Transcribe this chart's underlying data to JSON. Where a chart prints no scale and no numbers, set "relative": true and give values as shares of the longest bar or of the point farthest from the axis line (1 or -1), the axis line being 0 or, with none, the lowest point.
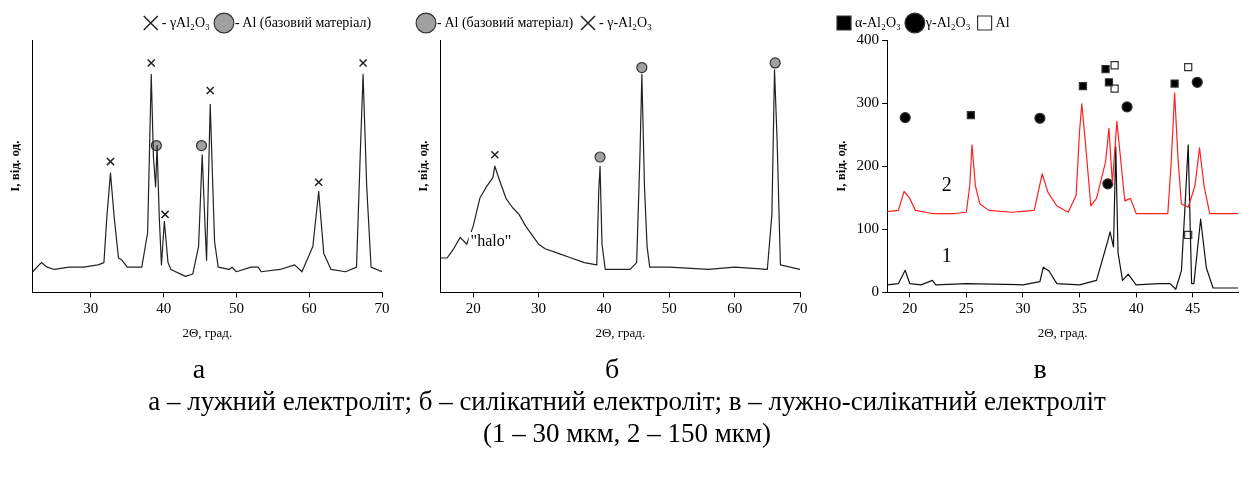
{
  "chart_data": [
    {
      "type": "line",
      "relative": true,
      "xlabel": "2Θ, град.",
      "ylabel": "I, від. од.",
      "xlim": [
        22,
        70
      ],
      "xticks": [
        30,
        40,
        50,
        60,
        70
      ],
      "tick_labels": "x",
      "legend": "top right",
      "annotations": [
        "а"
      ],
      "series": [
        {
          "color": "#222222",
          "marker": "none",
          "x": [
            22,
            23.2,
            24,
            25,
            27,
            29,
            31,
            31.8,
            32.2,
            32.7,
            33.2,
            33.8,
            34.3,
            35,
            37,
            37.8,
            38.3,
            38.6,
            38.9,
            39.1,
            39.4,
            39.7,
            40.1,
            40.6,
            41,
            43,
            44,
            44.8,
            45.3,
            45.7,
            45.9,
            46.4,
            47,
            47.5,
            49,
            49.4,
            50,
            52,
            53,
            53.4,
            56,
            58,
            59,
            60.5,
            61.3,
            62,
            63,
            65,
            66.5,
            67,
            67.4,
            67.9,
            68.5,
            70
          ],
          "values": [
            0.09,
            0.13,
            0.11,
            0.1,
            0.11,
            0.11,
            0.12,
            0.13,
            0.33,
            0.52,
            0.33,
            0.15,
            0.14,
            0.11,
            0.11,
            0.26,
            0.95,
            0.59,
            0.46,
            0.64,
            0.33,
            0.12,
            0.31,
            0.13,
            0.1,
            0.07,
            0.08,
            0.2,
            0.6,
            0.28,
            0.14,
            0.82,
            0.22,
            0.11,
            0.1,
            0.11,
            0.09,
            0.11,
            0.11,
            0.09,
            0.1,
            0.12,
            0.09,
            0.2,
            0.44,
            0.17,
            0.1,
            0.09,
            0.11,
            0.59,
            0.95,
            0.46,
            0.11,
            0.09
          ]
        },
        {
          "type": "scatter",
          "name": "- γAl₂O₃",
          "color": "#222222",
          "marker": "cross",
          "x": [
            32.7,
            38.3,
            40.2,
            46.4,
            61.3,
            67.4
          ],
          "values": [
            0.57,
            1.0,
            0.34,
            0.88,
            0.48,
            1.0
          ]
        },
        {
          "type": "scatter",
          "name": "- Al (базовий матеріал)",
          "color": "#a0a0a0",
          "marker": "circle",
          "x": [
            39,
            45.2
          ],
          "values": [
            0.64,
            0.64
          ]
        }
      ]
    },
    {
      "type": "line",
      "relative": true,
      "xlabel": "2Θ, град.",
      "ylabel": "I, від. од.",
      "xlim": [
        15,
        70
      ],
      "xticks": [
        20,
        30,
        40,
        50,
        60,
        70
      ],
      "tick_labels": "x",
      "legend": "top left",
      "annotations": [
        "б",
        "\"halo\""
      ],
      "series": [
        {
          "color": "#222222",
          "marker": "none",
          "x": [
            15,
            16,
            17,
            18,
            19,
            20,
            21,
            22,
            23,
            23.3,
            24,
            25,
            26,
            27,
            28,
            29,
            30,
            31,
            33,
            35,
            37,
            38.9,
            39.2,
            39.4,
            39.7,
            40.2,
            42,
            44,
            45,
            45.5,
            45.8,
            46.2,
            46.6,
            47,
            50,
            56,
            60,
            65,
            65.7,
            66.1,
            66.5,
            67,
            70
          ],
          "values": [
            0.15,
            0.15,
            0.19,
            0.24,
            0.21,
            0.29,
            0.41,
            0.46,
            0.5,
            0.55,
            0.49,
            0.41,
            0.37,
            0.34,
            0.29,
            0.25,
            0.21,
            0.19,
            0.17,
            0.15,
            0.13,
            0.12,
            0.44,
            0.55,
            0.21,
            0.1,
            0.1,
            0.1,
            0.13,
            0.59,
            0.95,
            0.46,
            0.2,
            0.11,
            0.11,
            0.1,
            0.11,
            0.1,
            0.34,
            0.97,
            0.66,
            0.12,
            0.1
          ]
        },
        {
          "type": "scatter",
          "name": "- Al (базовий матеріал)",
          "color": "#a0a0a0",
          "marker": "circle",
          "x": [
            39.4,
            45.8,
            66.2
          ],
          "values": [
            0.59,
            0.98,
            1.0
          ]
        },
        {
          "type": "scatter",
          "name": "- γ-Al₂O₃",
          "color": "#222222",
          "marker": "cross",
          "x": [
            23.3
          ],
          "values": [
            0.6
          ]
        }
      ]
    },
    {
      "type": "line",
      "xlabel": "2Θ, град.",
      "ylabel": "I, від. од.",
      "xlim": [
        18,
        49
      ],
      "xticks": [
        20,
        25,
        30,
        35,
        40,
        45
      ],
      "ylim": [
        0,
        400
      ],
      "yticks": [
        0,
        100,
        200,
        300,
        400
      ],
      "legend": "top left",
      "annotations": [
        "в",
        "а – лужний електроліт; б – силікатний електроліт; в – лужно-силікатний електроліт (1 – 30 мкм,  2 – 150 мкм)"
      ],
      "series": [
        {
          "name": "2",
          "color": "#ff2020",
          "marker": "none",
          "x": [
            18,
            19,
            19.5,
            20,
            20.5,
            22,
            24,
            25,
            25.3,
            25.5,
            25.8,
            26.2,
            27,
            29,
            31,
            31.7,
            32.2,
            33,
            34,
            34.7,
            35,
            35.2,
            35.5,
            36,
            36.5,
            37.3,
            37.6,
            37.9,
            38.3,
            38.6,
            39,
            39.5,
            40,
            42,
            42.8,
            43.1,
            43.4,
            43.7,
            44,
            44.6,
            45.2,
            45.6,
            46,
            46.5,
            49
          ],
          "values": [
            128,
            130,
            160,
            149,
            130,
            125,
            125,
            127,
            169,
            234,
            169,
            140,
            130,
            127,
            130,
            188,
            159,
            137,
            127,
            154,
            255,
            299,
            241,
            137,
            149,
            207,
            260,
            173,
            271,
            217,
            145,
            149,
            125,
            125,
            125,
            207,
            316,
            212,
            140,
            135,
            169,
            229,
            169,
            125,
            125
          ]
        },
        {
          "name": "1",
          "color": "#111111",
          "marker": "none",
          "x": [
            18,
            19,
            19.6,
            20,
            21,
            22,
            22.3,
            25,
            30,
            31.5,
            31.8,
            32.3,
            33,
            35,
            36.5,
            37.5,
            37.7,
            38,
            38.2,
            38.4,
            38.8,
            39.3,
            40,
            42,
            43,
            43.5,
            44,
            44.3,
            44.6,
            44.9,
            45.1,
            45.7,
            46.2,
            46.8,
            49
          ],
          "values": [
            12,
            14,
            35,
            14,
            12,
            19,
            12,
            14,
            12,
            17,
            40,
            34,
            14,
            12,
            19,
            82,
            96,
            72,
            231,
            63,
            19,
            29,
            12,
            14,
            14,
            5,
            34,
            130,
            234,
            14,
            14,
            116,
            39,
            7,
            7
          ]
        },
        {
          "type": "scatter",
          "name": "α-Al₂O₃",
          "color": "#000000",
          "marker": "square",
          "x": [
            25.4,
            35.3,
            37.3,
            37.6,
            43.4
          ],
          "values": [
            281,
            327,
            354,
            333,
            331
          ]
        },
        {
          "type": "scatter",
          "name": "γ-Al₂O₃",
          "color": "#000000",
          "marker": "circle",
          "x": [
            19.6,
            31.5,
            39.2,
            45.4,
            37.5
          ],
          "values": [
            277,
            276,
            294,
            333,
            172
          ]
        },
        {
          "type": "scatter",
          "name": "Al",
          "color": "#ffffff",
          "marker": "square",
          "x": [
            38.1,
            38.1,
            44.6,
            44.6
          ],
          "values": [
            360,
            323,
            357,
            91
          ]
        }
      ]
    }
  ]
}
